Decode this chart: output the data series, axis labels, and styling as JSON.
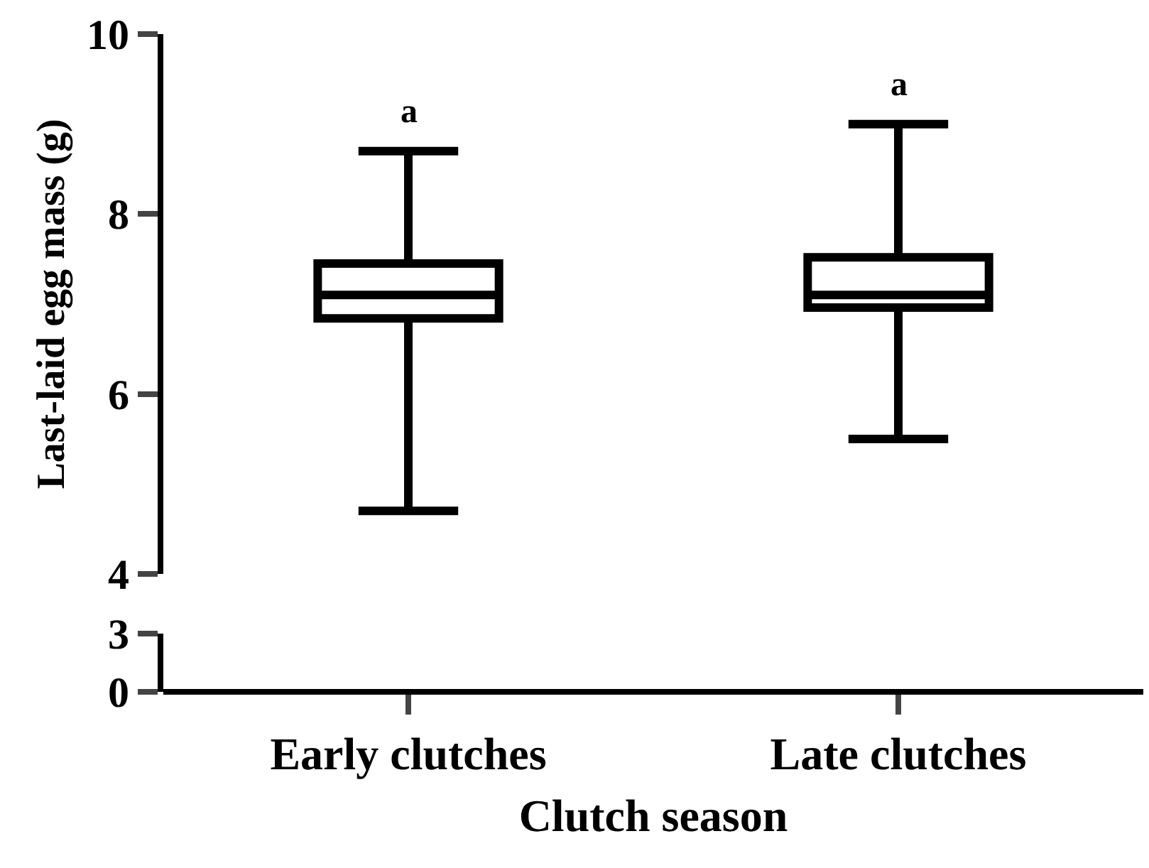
{
  "chart_data": [
    {
      "type": "box",
      "ylabel": "Last-laid egg mass (g)",
      "xlabel": "Clutch season",
      "categories": [
        "Early clutches",
        "Late clutches"
      ],
      "color": "#000000",
      "boxes": [
        {
          "low": 4.7,
          "q1": 6.84,
          "median": 7.1,
          "q3": 7.45,
          "high": 8.7
        },
        {
          "low": 5.5,
          "q1": 6.96,
          "median": 7.1,
          "q3": 7.52,
          "high": 9.0
        }
      ],
      "annotations": [
        "a",
        "a"
      ],
      "ylim": [
        4,
        10
      ],
      "yticks": [
        4,
        6,
        8,
        10
      ],
      "grid": false
    },
    {
      "type": "other",
      "annotations": [
        "3",
        "0"
      ]
    }
  ]
}
